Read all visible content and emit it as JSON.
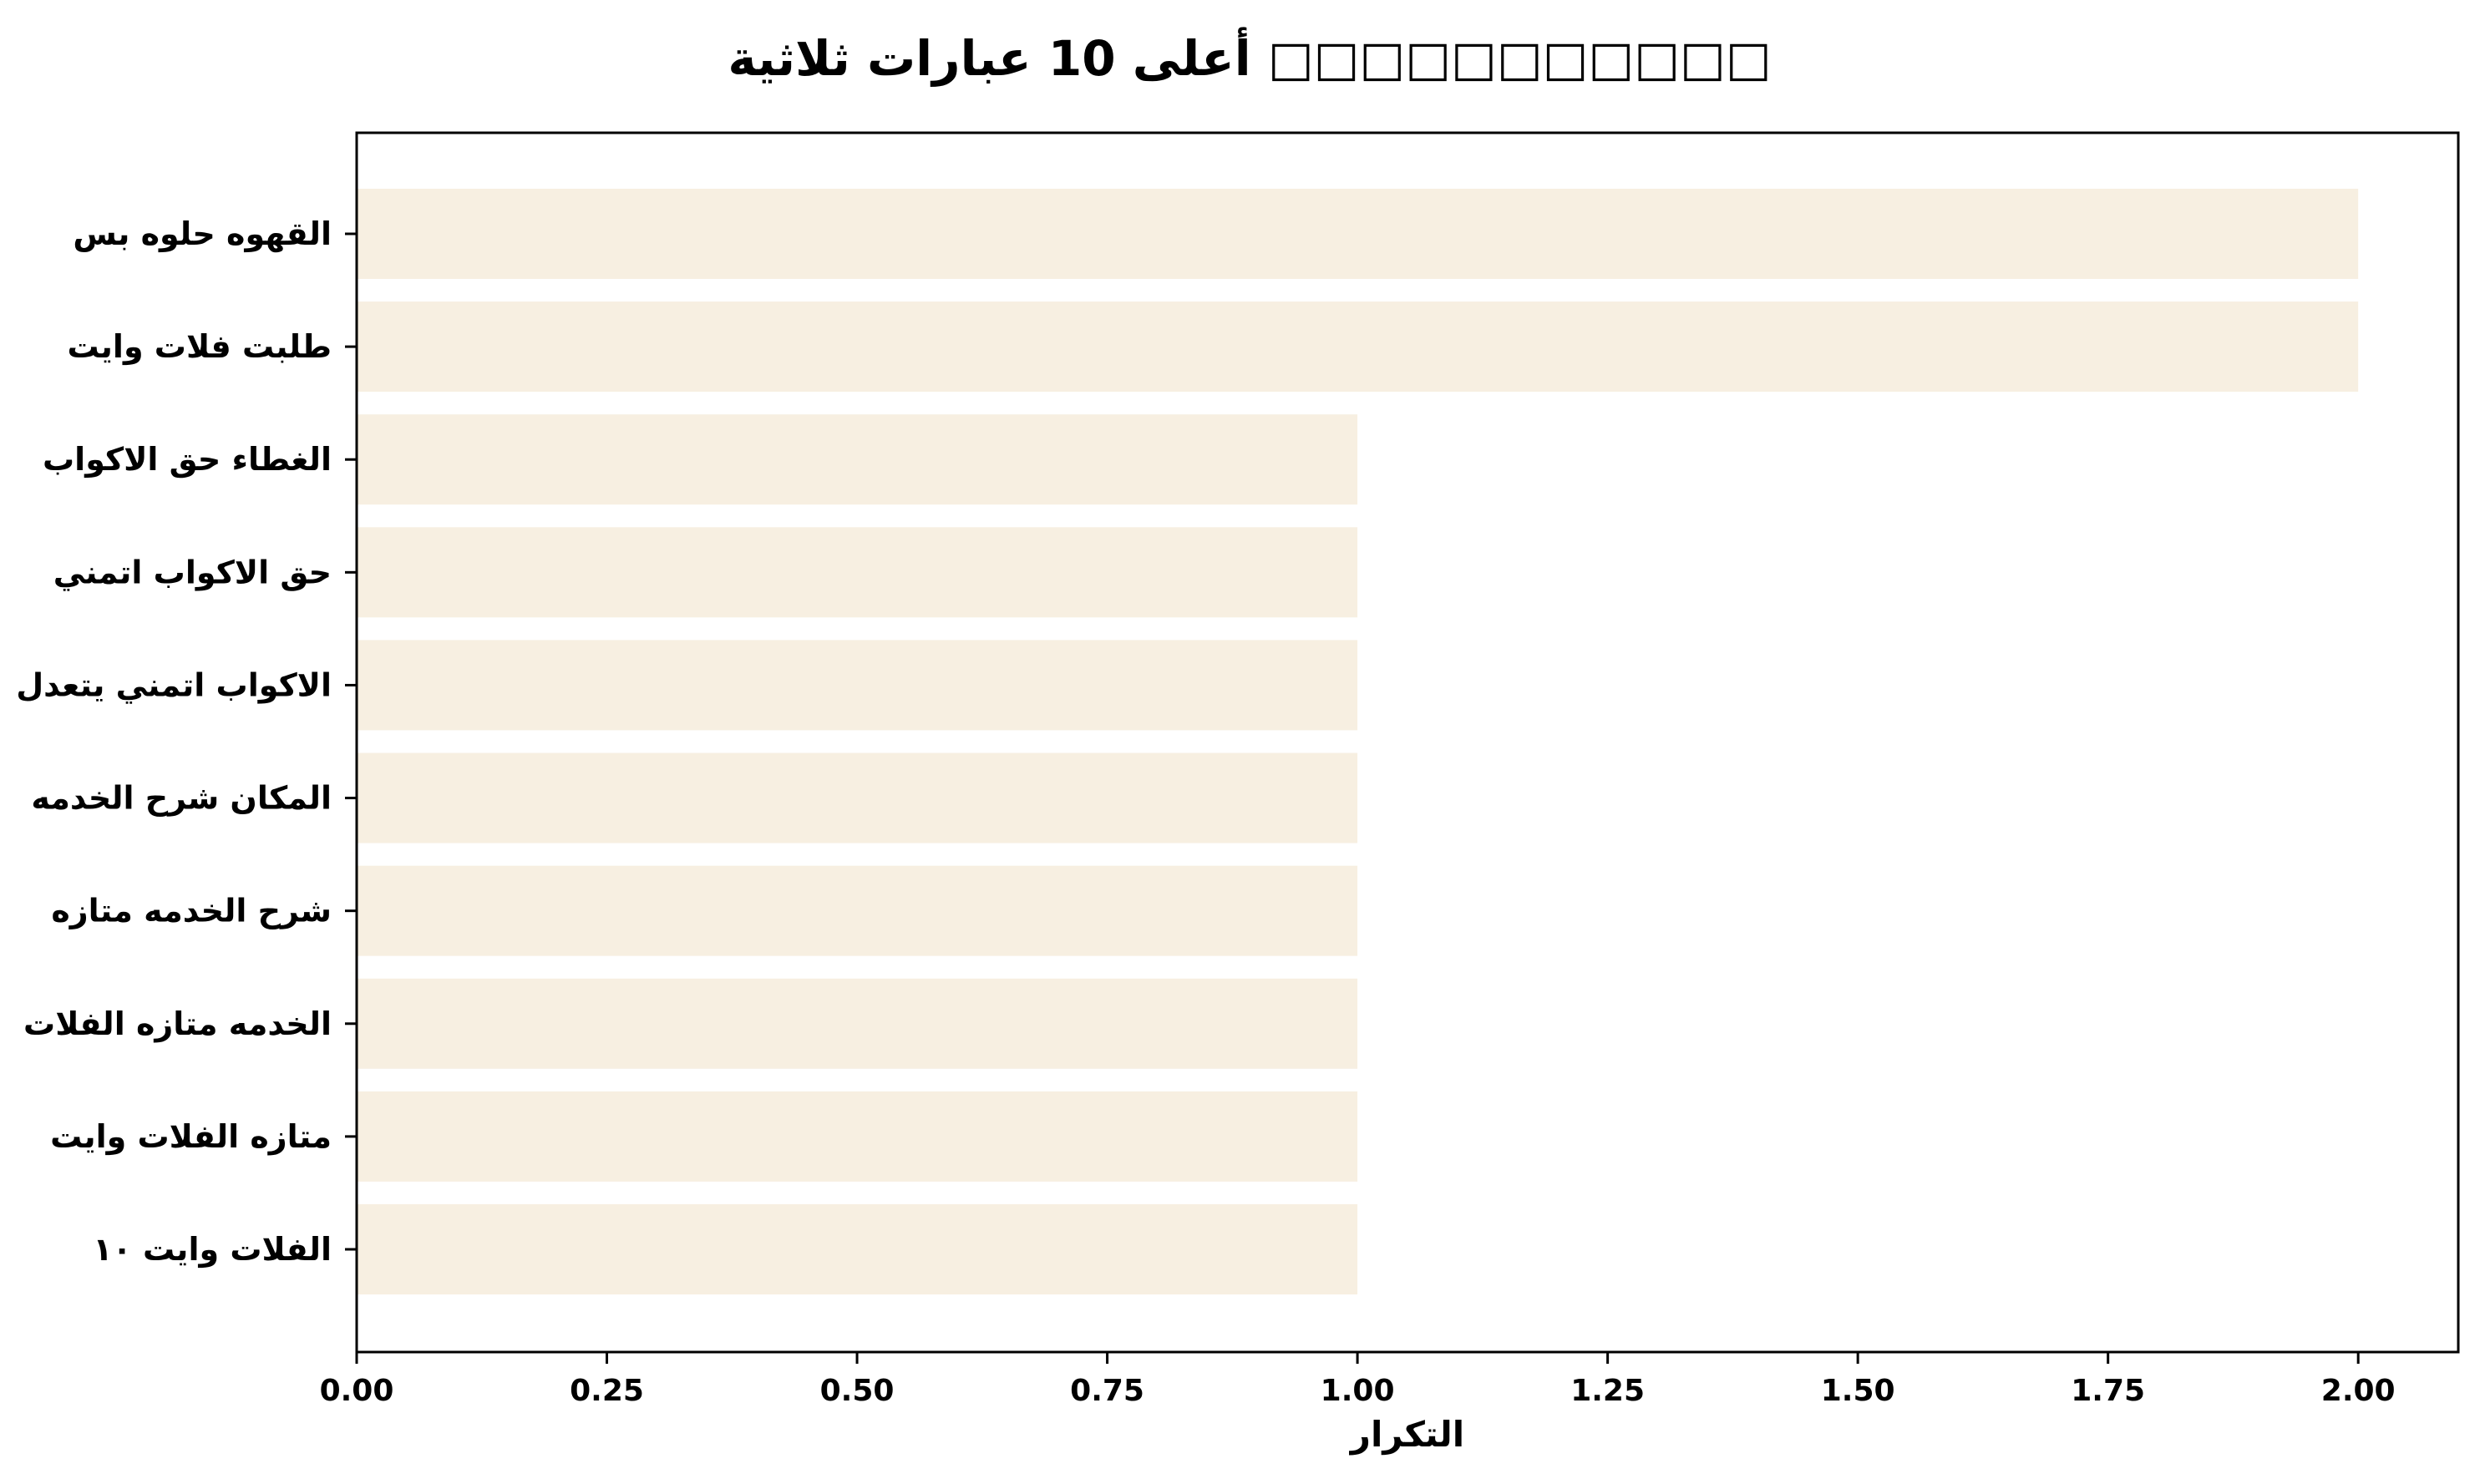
{
  "chart_data": {
    "type": "bar",
    "orientation": "horizontal",
    "title": "أعلى 10 عبارات ثلاثية □□□□□□□□□□□",
    "xlabel": "التكرار",
    "ylabel": "",
    "categories": [
      "القهوه حلوه بس",
      "طلبت فلات وايت",
      "الغطاء حق الاكواب",
      "حق الاكواب اتمني",
      "الاكواب اتمني يتعدل",
      "المكان شرح الخدمه",
      "شرح الخدمه متازه",
      "الخدمه متازه الفلات",
      "متازه الفلات وايت",
      "الفلات وايت ١٠"
    ],
    "values": [
      2,
      2,
      1,
      1,
      1,
      1,
      1,
      1,
      1,
      1
    ],
    "xlim": [
      0,
      2.1
    ],
    "xticks": [
      "0.00",
      "0.25",
      "0.50",
      "0.75",
      "1.00",
      "1.25",
      "1.50",
      "1.75",
      "2.00"
    ],
    "bar_color": "#f7efe1",
    "grid": false,
    "legend": "none"
  }
}
